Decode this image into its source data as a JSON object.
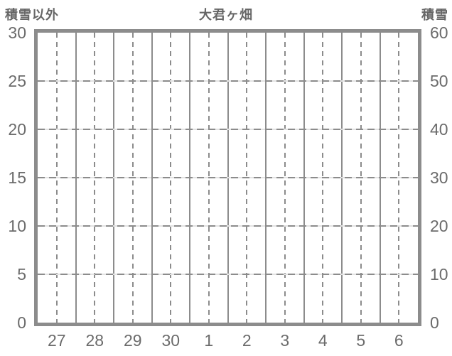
{
  "chart_data": {
    "type": "line",
    "title": "大君ヶ畑",
    "series": [],
    "plotted_data": "none - empty grid, no data drawn",
    "x_axis": {
      "categories": [
        "27",
        "28",
        "29",
        "30",
        "1",
        "2",
        "3",
        "4",
        "5",
        "6"
      ]
    },
    "left_axis": {
      "title": "積雪以外",
      "min": 0,
      "max": 30,
      "tick_step": 5,
      "ticks": [
        "30",
        "25",
        "20",
        "15",
        "10",
        "5",
        "0"
      ]
    },
    "right_axis": {
      "title": "積雪",
      "min": 0,
      "max": 60,
      "tick_step": 10,
      "ticks": [
        "60",
        "50",
        "40",
        "30",
        "20",
        "10",
        "0"
      ]
    },
    "grid": {
      "horizontal_dashed_at_left_values": [
        25,
        20,
        15,
        10,
        5
      ],
      "vertical_solid": "day boundaries",
      "vertical_dashed": "day midpoints",
      "grid_on": true
    },
    "legend_position": "none"
  },
  "colors": {
    "background": "#ffffff",
    "frame": "#8c8c8c",
    "gridline": "#8c8c8c",
    "text": "#6b6b6b",
    "title_text": "#666666"
  }
}
